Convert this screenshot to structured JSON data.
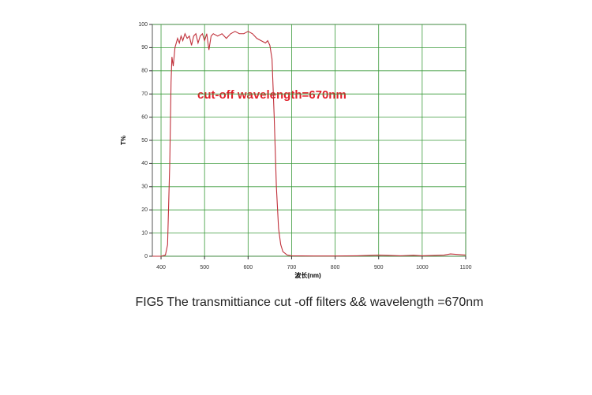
{
  "chart_data": {
    "type": "line",
    "annotation": "cut-off wavelength=670nm",
    "xlabel": "波长(nm)",
    "ylabel": "T%",
    "caption": "FIG5  The transmittiance cut -off filters && wavelength =670nm",
    "x": [
      380,
      400,
      410,
      415,
      420,
      423,
      425,
      428,
      432,
      438,
      442,
      446,
      450,
      455,
      460,
      465,
      470,
      475,
      480,
      485,
      490,
      495,
      500,
      505,
      510,
      515,
      520,
      530,
      540,
      550,
      560,
      570,
      580,
      590,
      600,
      610,
      620,
      630,
      640,
      645,
      650,
      655,
      660,
      665,
      670,
      675,
      680,
      690,
      700,
      750,
      800,
      850,
      900,
      950,
      980,
      1000,
      1050,
      1065,
      1080,
      1100
    ],
    "series": [
      {
        "color": "#c0303a",
        "values": [
          0,
          0,
          0.5,
          5,
          40,
          75,
          86,
          82,
          90,
          94,
          92,
          95,
          93,
          96,
          94,
          95,
          91,
          95,
          96,
          92,
          95,
          96,
          93,
          96,
          89,
          95,
          96,
          95,
          96,
          94,
          96,
          97,
          96,
          96,
          97,
          96,
          94,
          93,
          92,
          93,
          91,
          85,
          60,
          30,
          12,
          5,
          2,
          0.5,
          0.2,
          0.1,
          0.1,
          0.2,
          0.5,
          0.2,
          0.4,
          0.2,
          0.5,
          1,
          0.8,
          0.5
        ]
      }
    ],
    "xlim": [
      380,
      1100
    ],
    "ylim": [
      0,
      100
    ],
    "xticks": [
      400,
      500,
      600,
      700,
      800,
      900,
      1000,
      1100
    ],
    "yticks": [
      0,
      10,
      20,
      30,
      40,
      50,
      60,
      70,
      80,
      90,
      100
    ],
    "grid": true,
    "grid_color": "#3a9a3a"
  }
}
